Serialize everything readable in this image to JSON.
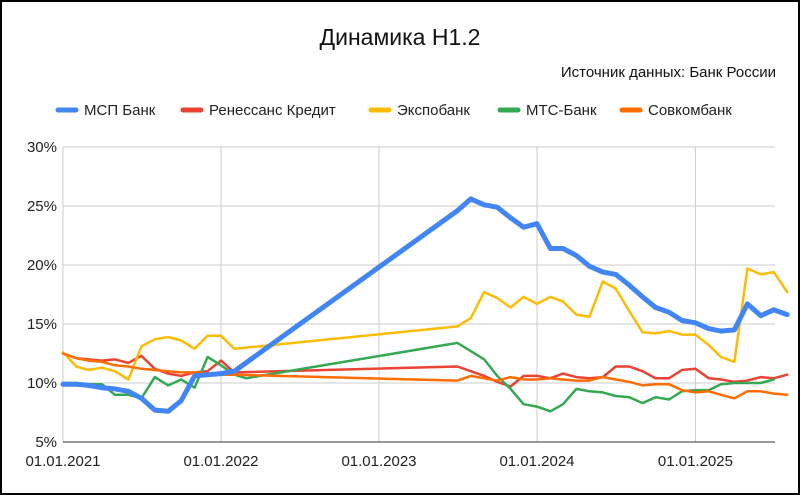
{
  "chart_data": {
    "type": "line",
    "title": "Динамика Н1.2",
    "subtitle": "Источник данных: Банк России",
    "xlabel": "",
    "ylabel": "",
    "ylim": [
      0.05,
      0.3
    ],
    "yticks": [
      "5%",
      "10%",
      "15%",
      "20%",
      "25%",
      "30%"
    ],
    "xticks": [
      "01.01.2021",
      "01.01.2022",
      "01.01.2023",
      "01.01.2024",
      "01.01.2025"
    ],
    "xlim": [
      "2021-01-01",
      "2025-07-01"
    ],
    "legend_position": "top",
    "grid": true,
    "series": [
      {
        "name": "МСП Банк",
        "color": "#4285F4",
        "points": [
          [
            "2021-01-01",
            0.099
          ],
          [
            "2021-02-01",
            0.099
          ],
          [
            "2021-03-01",
            0.098
          ],
          [
            "2021-04-01",
            0.096
          ],
          [
            "2021-05-01",
            0.095
          ],
          [
            "2021-06-01",
            0.093
          ],
          [
            "2021-07-01",
            0.087
          ],
          [
            "2021-08-01",
            0.077
          ],
          [
            "2021-09-01",
            0.076
          ],
          [
            "2021-10-01",
            0.085
          ],
          [
            "2021-11-01",
            0.106
          ],
          [
            "2021-12-01",
            0.107
          ],
          [
            "2022-01-01",
            0.108
          ],
          [
            "2022-02-01",
            0.11
          ],
          [
            "2023-07-01",
            0.246
          ],
          [
            "2023-08-01",
            0.256
          ],
          [
            "2023-09-01",
            0.251
          ],
          [
            "2023-10-01",
            0.249
          ],
          [
            "2023-11-01",
            0.24
          ],
          [
            "2023-12-01",
            0.232
          ],
          [
            "2024-01-01",
            0.235
          ],
          [
            "2024-02-01",
            0.214
          ],
          [
            "2024-03-01",
            0.214
          ],
          [
            "2024-04-01",
            0.208
          ],
          [
            "2024-05-01",
            0.199
          ],
          [
            "2024-06-01",
            0.194
          ],
          [
            "2024-07-01",
            0.192
          ],
          [
            "2024-08-01",
            0.183
          ],
          [
            "2024-09-01",
            0.173
          ],
          [
            "2024-10-01",
            0.164
          ],
          [
            "2024-11-01",
            0.16
          ],
          [
            "2024-12-01",
            0.153
          ],
          [
            "2025-01-01",
            0.151
          ],
          [
            "2025-02-01",
            0.146
          ],
          [
            "2025-03-01",
            0.144
          ],
          [
            "2025-04-01",
            0.145
          ],
          [
            "2025-05-01",
            0.167
          ],
          [
            "2025-06-01",
            0.157
          ],
          [
            "2025-07-01",
            0.162
          ],
          [
            "2025-08-01",
            0.158
          ]
        ]
      },
      {
        "name": "Ренессанс Кредит",
        "color": "#EA4335",
        "points": [
          [
            "2021-01-01",
            0.125
          ],
          [
            "2021-02-01",
            0.121
          ],
          [
            "2021-03-01",
            0.12
          ],
          [
            "2021-04-01",
            0.119
          ],
          [
            "2021-05-01",
            0.12
          ],
          [
            "2021-06-01",
            0.117
          ],
          [
            "2021-07-01",
            0.123
          ],
          [
            "2021-08-01",
            0.112
          ],
          [
            "2021-09-01",
            0.108
          ],
          [
            "2021-10-01",
            0.106
          ],
          [
            "2021-11-01",
            0.109
          ],
          [
            "2021-12-01",
            0.11
          ],
          [
            "2022-01-01",
            0.119
          ],
          [
            "2022-02-01",
            0.109
          ],
          [
            "2023-07-01",
            0.114
          ],
          [
            "2023-08-01",
            0.11
          ],
          [
            "2023-09-01",
            0.106
          ],
          [
            "2023-10-01",
            0.101
          ],
          [
            "2023-11-01",
            0.097
          ],
          [
            "2023-12-01",
            0.106
          ],
          [
            "2024-01-01",
            0.106
          ],
          [
            "2024-02-01",
            0.104
          ],
          [
            "2024-03-01",
            0.108
          ],
          [
            "2024-04-01",
            0.105
          ],
          [
            "2024-05-01",
            0.104
          ],
          [
            "2024-06-01",
            0.105
          ],
          [
            "2024-07-01",
            0.114
          ],
          [
            "2024-08-01",
            0.114
          ],
          [
            "2024-09-01",
            0.11
          ],
          [
            "2024-10-01",
            0.104
          ],
          [
            "2024-11-01",
            0.104
          ],
          [
            "2024-12-01",
            0.111
          ],
          [
            "2025-01-01",
            0.112
          ],
          [
            "2025-02-01",
            0.104
          ],
          [
            "2025-03-01",
            0.103
          ],
          [
            "2025-04-01",
            0.101
          ],
          [
            "2025-05-01",
            0.102
          ],
          [
            "2025-06-01",
            0.105
          ],
          [
            "2025-07-01",
            0.104
          ],
          [
            "2025-08-01",
            0.107
          ]
        ]
      },
      {
        "name": "Экспобанк",
        "color": "#FBBC04",
        "points": [
          [
            "2021-01-01",
            0.126
          ],
          [
            "2021-02-01",
            0.114
          ],
          [
            "2021-03-01",
            0.111
          ],
          [
            "2021-04-01",
            0.113
          ],
          [
            "2021-05-01",
            0.11
          ],
          [
            "2021-06-01",
            0.103
          ],
          [
            "2021-07-01",
            0.131
          ],
          [
            "2021-08-01",
            0.137
          ],
          [
            "2021-09-01",
            0.139
          ],
          [
            "2021-10-01",
            0.136
          ],
          [
            "2021-11-01",
            0.129
          ],
          [
            "2021-12-01",
            0.14
          ],
          [
            "2022-01-01",
            0.14
          ],
          [
            "2022-02-01",
            0.129
          ],
          [
            "2023-07-01",
            0.148
          ],
          [
            "2023-08-01",
            0.155
          ],
          [
            "2023-09-01",
            0.177
          ],
          [
            "2023-10-01",
            0.172
          ],
          [
            "2023-11-01",
            0.164
          ],
          [
            "2023-12-01",
            0.173
          ],
          [
            "2024-01-01",
            0.167
          ],
          [
            "2024-02-01",
            0.173
          ],
          [
            "2024-03-01",
            0.169
          ],
          [
            "2024-04-01",
            0.158
          ],
          [
            "2024-05-01",
            0.156
          ],
          [
            "2024-06-01",
            0.186
          ],
          [
            "2024-07-01",
            0.18
          ],
          [
            "2024-08-01",
            0.161
          ],
          [
            "2024-09-01",
            0.143
          ],
          [
            "2024-10-01",
            0.142
          ],
          [
            "2024-11-01",
            0.144
          ],
          [
            "2024-12-01",
            0.141
          ],
          [
            "2025-01-01",
            0.141
          ],
          [
            "2025-02-01",
            0.132
          ],
          [
            "2025-03-01",
            0.122
          ],
          [
            "2025-04-01",
            0.118
          ],
          [
            "2025-05-01",
            0.197
          ],
          [
            "2025-06-01",
            0.192
          ],
          [
            "2025-07-01",
            0.194
          ],
          [
            "2025-08-01",
            0.177
          ]
        ]
      },
      {
        "name": "МТС-Банк",
        "color": "#34A853",
        "points": [
          [
            "2021-01-01",
            0.1
          ],
          [
            "2021-02-01",
            0.1
          ],
          [
            "2021-03-01",
            0.099
          ],
          [
            "2021-04-01",
            0.099
          ],
          [
            "2021-05-01",
            0.09
          ],
          [
            "2021-06-01",
            0.09
          ],
          [
            "2021-07-01",
            0.087
          ],
          [
            "2021-08-01",
            0.105
          ],
          [
            "2021-09-01",
            0.098
          ],
          [
            "2021-10-01",
            0.103
          ],
          [
            "2021-11-01",
            0.096
          ],
          [
            "2021-12-01",
            0.122
          ],
          [
            "2022-01-01",
            0.115
          ],
          [
            "2022-02-01",
            0.107
          ],
          [
            "2022-03-01",
            0.104
          ],
          [
            "2022-04-01",
            0.106
          ],
          [
            "2023-07-01",
            0.134
          ],
          [
            "2023-08-01",
            0.127
          ],
          [
            "2023-09-01",
            0.12
          ],
          [
            "2023-10-01",
            0.106
          ],
          [
            "2023-11-01",
            0.095
          ],
          [
            "2023-12-01",
            0.082
          ],
          [
            "2024-01-01",
            0.08
          ],
          [
            "2024-02-01",
            0.076
          ],
          [
            "2024-03-01",
            0.082
          ],
          [
            "2024-04-01",
            0.095
          ],
          [
            "2024-05-01",
            0.093
          ],
          [
            "2024-06-01",
            0.092
          ],
          [
            "2024-07-01",
            0.089
          ],
          [
            "2024-08-01",
            0.088
          ],
          [
            "2024-09-01",
            0.083
          ],
          [
            "2024-10-01",
            0.088
          ],
          [
            "2024-11-01",
            0.086
          ],
          [
            "2024-12-01",
            0.093
          ],
          [
            "2025-01-01",
            0.094
          ],
          [
            "2025-02-01",
            0.094
          ],
          [
            "2025-03-01",
            0.099
          ],
          [
            "2025-04-01",
            0.1
          ],
          [
            "2025-05-01",
            0.1
          ],
          [
            "2025-06-01",
            0.1
          ],
          [
            "2025-07-01",
            0.103
          ]
        ]
      },
      {
        "name": "Совкомбанк",
        "color": "#FF6D01",
        "points": [
          [
            "2021-01-01",
            0.125
          ],
          [
            "2021-02-01",
            0.121
          ],
          [
            "2021-03-01",
            0.119
          ],
          [
            "2021-04-01",
            0.118
          ],
          [
            "2021-05-01",
            0.115
          ],
          [
            "2021-06-01",
            0.114
          ],
          [
            "2021-07-01",
            0.112
          ],
          [
            "2021-08-01",
            0.111
          ],
          [
            "2021-09-01",
            0.11
          ],
          [
            "2021-10-01",
            0.109
          ],
          [
            "2021-11-01",
            0.109
          ],
          [
            "2021-12-01",
            0.108
          ],
          [
            "2022-01-01",
            0.107
          ],
          [
            "2022-02-01",
            0.107
          ],
          [
            "2023-07-01",
            0.102
          ],
          [
            "2023-08-01",
            0.106
          ],
          [
            "2023-09-01",
            0.104
          ],
          [
            "2023-10-01",
            0.102
          ],
          [
            "2023-11-01",
            0.105
          ],
          [
            "2023-12-01",
            0.103
          ],
          [
            "2024-01-01",
            0.103
          ],
          [
            "2024-02-01",
            0.104
          ],
          [
            "2024-03-01",
            0.103
          ],
          [
            "2024-04-01",
            0.102
          ],
          [
            "2024-05-01",
            0.102
          ],
          [
            "2024-06-01",
            0.105
          ],
          [
            "2024-07-01",
            0.103
          ],
          [
            "2024-08-01",
            0.101
          ],
          [
            "2024-09-01",
            0.098
          ],
          [
            "2024-10-01",
            0.099
          ],
          [
            "2024-11-01",
            0.099
          ],
          [
            "2024-12-01",
            0.094
          ],
          [
            "2025-01-01",
            0.092
          ],
          [
            "2025-02-01",
            0.093
          ],
          [
            "2025-03-01",
            0.09
          ],
          [
            "2025-04-01",
            0.087
          ],
          [
            "2025-05-01",
            0.093
          ],
          [
            "2025-06-01",
            0.093
          ],
          [
            "2025-07-01",
            0.091
          ],
          [
            "2025-08-01",
            0.09
          ]
        ]
      }
    ]
  }
}
